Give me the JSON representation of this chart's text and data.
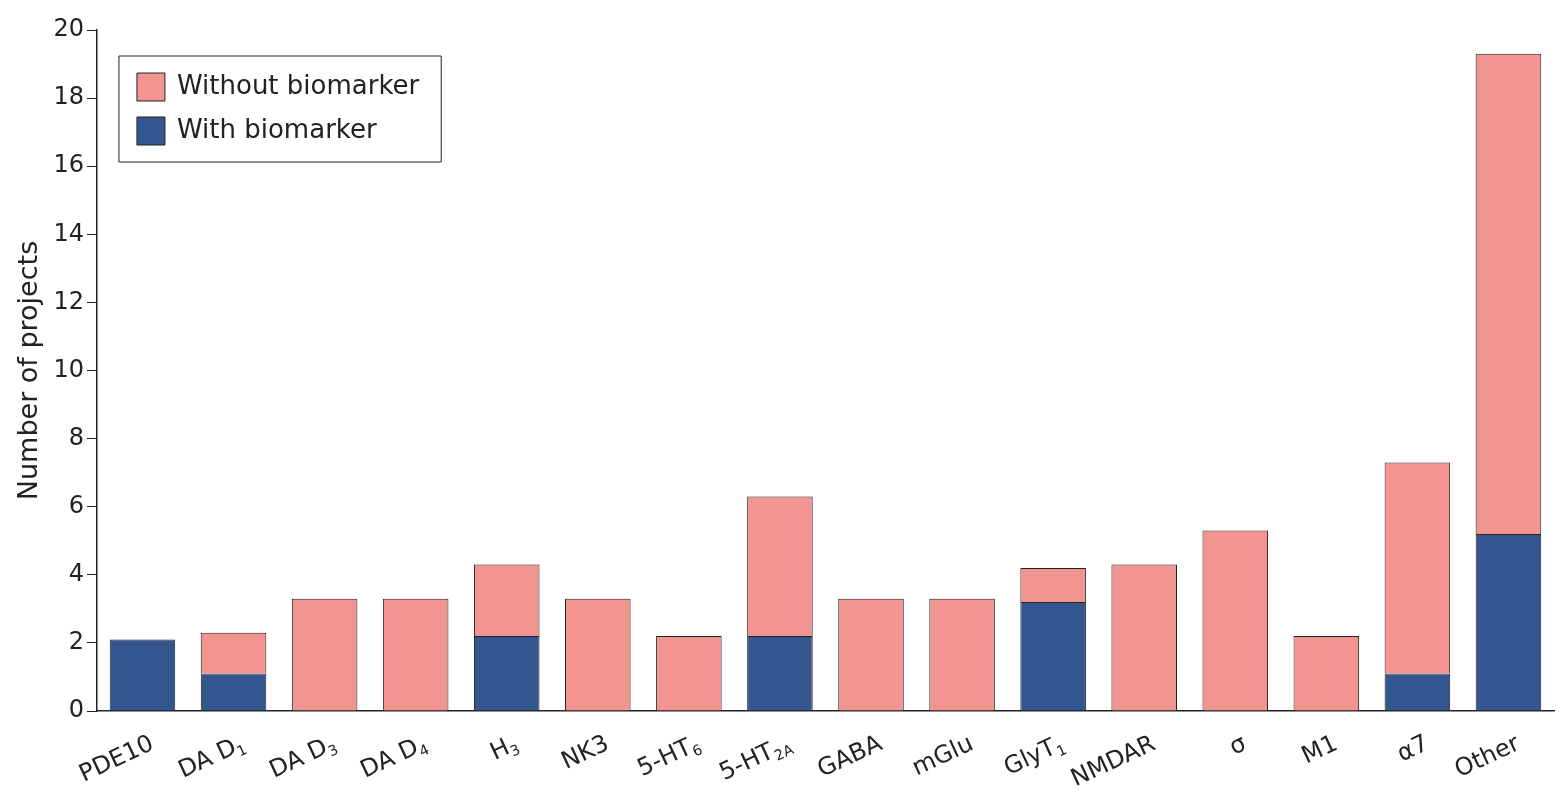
{
  "chart_data": {
    "type": "bar",
    "stacked": true,
    "ylabel": "Number of projects",
    "categories": [
      "PDE10",
      "DA D$_{1}$",
      "DA D$_{3}$",
      "DA D$_{4}$",
      "H$_{3}$",
      "NK3",
      "5-HT$_{6}$",
      "5-HT$_{2A}$",
      "GABA",
      "mGlu",
      "GlyT$_{1}$",
      "NMDAR",
      "σ",
      "M1",
      "α7",
      "Other"
    ],
    "series": [
      {
        "name": "With biomarker",
        "color": "#34568f",
        "values": [
          2.1,
          1.1,
          0,
          0,
          2.2,
          0,
          0,
          2.2,
          0,
          0,
          3.2,
          0,
          0,
          0,
          1.1,
          5.2
        ]
      },
      {
        "name": "Without biomarker",
        "color": "#f29590",
        "values": [
          0,
          1.2,
          3.3,
          3.3,
          2.1,
          3.3,
          2.2,
          4.1,
          3.3,
          3.3,
          1.0,
          4.3,
          5.3,
          2.2,
          6.2,
          14.1
        ]
      }
    ],
    "ylim": [
      0,
      20
    ],
    "yticks": [
      0,
      2,
      4,
      6,
      8,
      10,
      12,
      14,
      16,
      18,
      20
    ],
    "grid": false,
    "legend": "top left"
  }
}
